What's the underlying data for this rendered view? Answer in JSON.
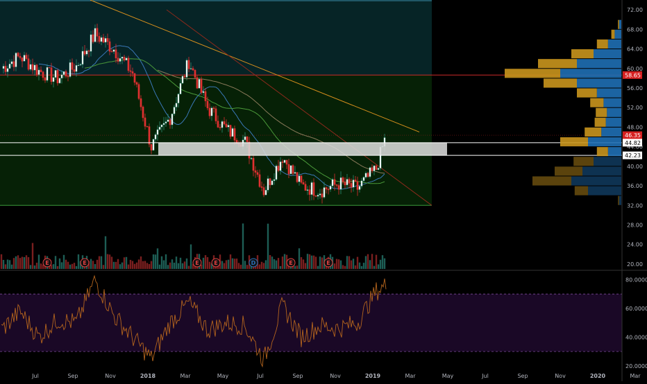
{
  "colors": {
    "background": "#000000",
    "up": "#2d8d72",
    "down": "#e03030",
    "candle_up_fill": "#ffffff",
    "candle_down_fill": "#e03030",
    "volume_up": "#1d5e55",
    "volume_down": "#7a1f1f",
    "rsi_line": "#b5651d",
    "rsi_band": "#1a0826",
    "profile_up": "#1f6fb4",
    "profile_down": "#c9951d",
    "zone_upper": "#062426",
    "zone_lower": "#062106",
    "support_band": "#d9d9d9",
    "resistance_line": "#cc2a2a",
    "sma_blue": "#3a78b8",
    "sma_green": "#4b9a3a",
    "sma_tan": "#8a7a5a",
    "trend_orange": "#d9901c",
    "trend_red": "#8c2a1c",
    "earnings_marker": "#e04040",
    "dividend_marker": "#2a6fb8"
  },
  "chart_data": [
    {
      "type": "line",
      "panel": "price",
      "xlabel": "",
      "ylabel": "",
      "x_ticks": [
        "Jul",
        "Sep",
        "Nov",
        "2018",
        "Mar",
        "May",
        "Jul",
        "Sep",
        "Nov",
        "2019",
        "Mar",
        "May",
        "Jul",
        "Sep",
        "Nov",
        "2020",
        "Mar"
      ],
      "y_ticks": [
        20,
        24,
        28,
        32,
        36,
        40,
        44,
        48,
        52,
        56,
        60,
        64,
        68,
        72
      ],
      "ylim": [
        19,
        74
      ],
      "price_tags": [
        {
          "value": 58.65,
          "label": "58.65",
          "style": "red"
        },
        {
          "value": 46.35,
          "label": "46.35",
          "style": "red"
        },
        {
          "value": 44.82,
          "label": "44.82",
          "style": "white"
        },
        {
          "value": 42.23,
          "label": "42.23",
          "style": "white"
        }
      ],
      "horizontal_levels": [
        {
          "name": "resistance",
          "value": 58.65
        },
        {
          "name": "support-band-top",
          "value": 44.82
        },
        {
          "name": "support-band-bottom",
          "value": 42.23
        },
        {
          "name": "zone-top",
          "value": 74.0
        },
        {
          "name": "zone-mid",
          "value": 58.65
        },
        {
          "name": "zone-bottom",
          "value": 32.0
        }
      ],
      "price_series": {
        "dates": [
          "2017-06",
          "2017-07",
          "2017-08",
          "2017-09",
          "2017-10",
          "2017-11",
          "2017-12",
          "2018-01",
          "2018-02",
          "2018-03",
          "2018-04",
          "2018-05",
          "2018-06",
          "2018-07",
          "2018-08",
          "2018-09",
          "2018-10",
          "2018-11",
          "2018-12",
          "2019-01",
          "2019-02",
          "2019-03"
        ],
        "close": [
          60.0,
          62.5,
          59.5,
          58.0,
          60.5,
          67.0,
          64.0,
          59.0,
          44.0,
          50.0,
          61.5,
          52.0,
          47.5,
          45.0,
          35.0,
          42.0,
          36.0,
          35.0,
          36.5,
          35.5,
          39.5,
          46.35
        ]
      }
    },
    {
      "type": "bar",
      "panel": "volume",
      "event_markers": [
        {
          "label": "E",
          "date": "2017-08"
        },
        {
          "label": "E",
          "date": "2017-10"
        },
        {
          "label": "E",
          "date": "2018-04"
        },
        {
          "label": "E",
          "date": "2018-05"
        },
        {
          "label": "D",
          "date": "2018-07"
        },
        {
          "label": "E",
          "date": "2018-09"
        },
        {
          "label": "E",
          "date": "2018-11"
        }
      ]
    },
    {
      "type": "line",
      "panel": "rsi",
      "y_ticks": [
        "80.0000",
        "60.0000",
        "40.0000",
        "20.0000"
      ],
      "ylim": [
        18,
        86
      ],
      "band": [
        30,
        70
      ],
      "dates": [
        "2017-06",
        "2017-07",
        "2017-08",
        "2017-09",
        "2017-10",
        "2017-11",
        "2017-12",
        "2018-01",
        "2018-02",
        "2018-03",
        "2018-04",
        "2018-05",
        "2018-06",
        "2018-07",
        "2018-08",
        "2018-09",
        "2018-10",
        "2018-11",
        "2018-12",
        "2019-01",
        "2019-02",
        "2019-03"
      ],
      "values": [
        45,
        58,
        40,
        52,
        50,
        80,
        55,
        40,
        25,
        50,
        64,
        45,
        50,
        48,
        24,
        62,
        40,
        48,
        46,
        50,
        72,
        76
      ]
    },
    {
      "type": "bar",
      "panel": "volume-profile",
      "levels": [
        {
          "price": 33,
          "up": 0.02,
          "down": 0.01
        },
        {
          "price": 35,
          "up": 0.3,
          "down": 0.12
        },
        {
          "price": 37,
          "up": 0.45,
          "down": 0.35
        },
        {
          "price": 39,
          "up": 0.35,
          "down": 0.25
        },
        {
          "price": 41,
          "up": 0.25,
          "down": 0.18
        },
        {
          "price": 43,
          "up": 0.12,
          "down": 0.1
        },
        {
          "price": 45,
          "up": 0.3,
          "down": 0.25
        },
        {
          "price": 47,
          "up": 0.18,
          "down": 0.15
        },
        {
          "price": 49,
          "up": 0.14,
          "down": 0.1
        },
        {
          "price": 51,
          "up": 0.13,
          "down": 0.1
        },
        {
          "price": 53,
          "up": 0.16,
          "down": 0.12
        },
        {
          "price": 55,
          "up": 0.22,
          "down": 0.18
        },
        {
          "price": 57,
          "up": 0.4,
          "down": 0.3
        },
        {
          "price": 59,
          "up": 0.55,
          "down": 0.5
        },
        {
          "price": 61,
          "up": 0.4,
          "down": 0.35
        },
        {
          "price": 63,
          "up": 0.25,
          "down": 0.2
        },
        {
          "price": 65,
          "up": 0.12,
          "down": 0.1
        },
        {
          "price": 67,
          "up": 0.06,
          "down": 0.03
        },
        {
          "price": 69,
          "up": 0.02,
          "down": 0.01
        }
      ]
    }
  ]
}
